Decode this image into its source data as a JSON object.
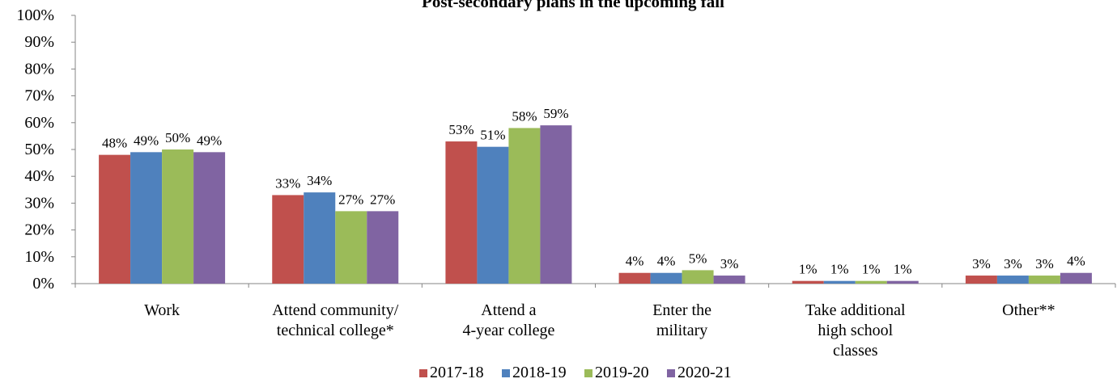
{
  "chart_data": {
    "type": "bar",
    "title": "Post-secondary plans in the upcoming fall",
    "categories": [
      [
        "Work"
      ],
      [
        "Attend community/",
        "technical college*"
      ],
      [
        "Attend a",
        "4-year college"
      ],
      [
        "Enter the",
        "military"
      ],
      [
        "Take additional",
        "high school",
        "classes"
      ],
      [
        "Other**"
      ]
    ],
    "series": [
      {
        "name": "2017-18",
        "color": "#C0504D",
        "values": [
          48,
          33,
          53,
          4,
          1,
          3
        ]
      },
      {
        "name": "2018-19",
        "color": "#4F81BD",
        "values": [
          49,
          34,
          51,
          4,
          1,
          3
        ]
      },
      {
        "name": "2019-20",
        "color": "#9BBB59",
        "values": [
          50,
          27,
          58,
          5,
          1,
          3
        ]
      },
      {
        "name": "2020-21",
        "color": "#8064A2",
        "values": [
          49,
          27,
          59,
          3,
          1,
          4
        ]
      }
    ],
    "value_suffix": "%",
    "ylim": [
      0,
      100
    ],
    "yticks": [
      0,
      10,
      20,
      30,
      40,
      50,
      60,
      70,
      80,
      90,
      100
    ],
    "grid": false,
    "legend_position": "bottom"
  }
}
